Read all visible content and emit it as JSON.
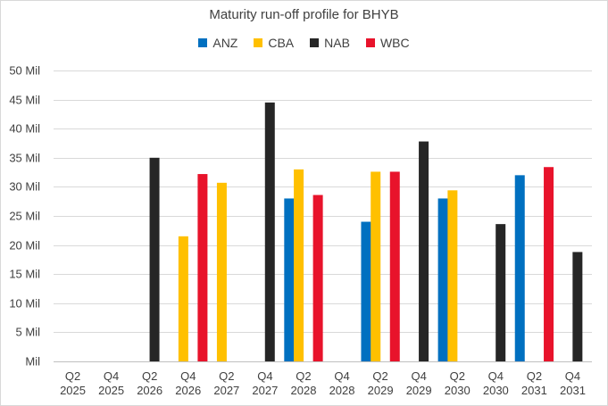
{
  "chart_data": {
    "type": "bar",
    "title": "Maturity run-off profile for BHYB",
    "xlabel": "",
    "ylabel": "",
    "ylim": [
      0,
      50
    ],
    "ytick_step": 5,
    "ytick_labels": [
      "Mil",
      "5 Mil",
      "10 Mil",
      "15 Mil",
      "20 Mil",
      "25 Mil",
      "30 Mil",
      "35 Mil",
      "40 Mil",
      "45 Mil",
      "50 Mil"
    ],
    "grid": true,
    "legend_position": "top-center",
    "categories": [
      {
        "line1": "Q2",
        "line2": "2025"
      },
      {
        "line1": "Q4",
        "line2": "2025"
      },
      {
        "line1": "Q2",
        "line2": "2026"
      },
      {
        "line1": "Q4",
        "line2": "2026"
      },
      {
        "line1": "Q2",
        "line2": "2027"
      },
      {
        "line1": "Q4",
        "line2": "2027"
      },
      {
        "line1": "Q2",
        "line2": "2028"
      },
      {
        "line1": "Q4",
        "line2": "2028"
      },
      {
        "line1": "Q2",
        "line2": "2029"
      },
      {
        "line1": "Q4",
        "line2": "2029"
      },
      {
        "line1": "Q2",
        "line2": "2030"
      },
      {
        "line1": "Q4",
        "line2": "2030"
      },
      {
        "line1": "Q2",
        "line2": "2031"
      },
      {
        "line1": "Q4",
        "line2": "2031"
      }
    ],
    "series": [
      {
        "name": "ANZ",
        "color": "#0070c0",
        "values": [
          null,
          null,
          null,
          null,
          null,
          null,
          28.0,
          null,
          24.0,
          null,
          28.0,
          null,
          32.0,
          null
        ]
      },
      {
        "name": "CBA",
        "color": "#ffc000",
        "values": [
          null,
          null,
          null,
          21.5,
          30.7,
          null,
          33.0,
          null,
          32.6,
          null,
          29.4,
          null,
          null,
          null
        ]
      },
      {
        "name": "NAB",
        "color": "#262626",
        "values": [
          null,
          null,
          35.0,
          null,
          null,
          44.5,
          null,
          null,
          null,
          37.8,
          null,
          23.6,
          null,
          18.8
        ]
      },
      {
        "name": "WBC",
        "color": "#e8132b",
        "values": [
          null,
          null,
          null,
          32.2,
          null,
          null,
          28.6,
          null,
          32.6,
          null,
          null,
          null,
          33.4,
          null
        ]
      }
    ]
  }
}
